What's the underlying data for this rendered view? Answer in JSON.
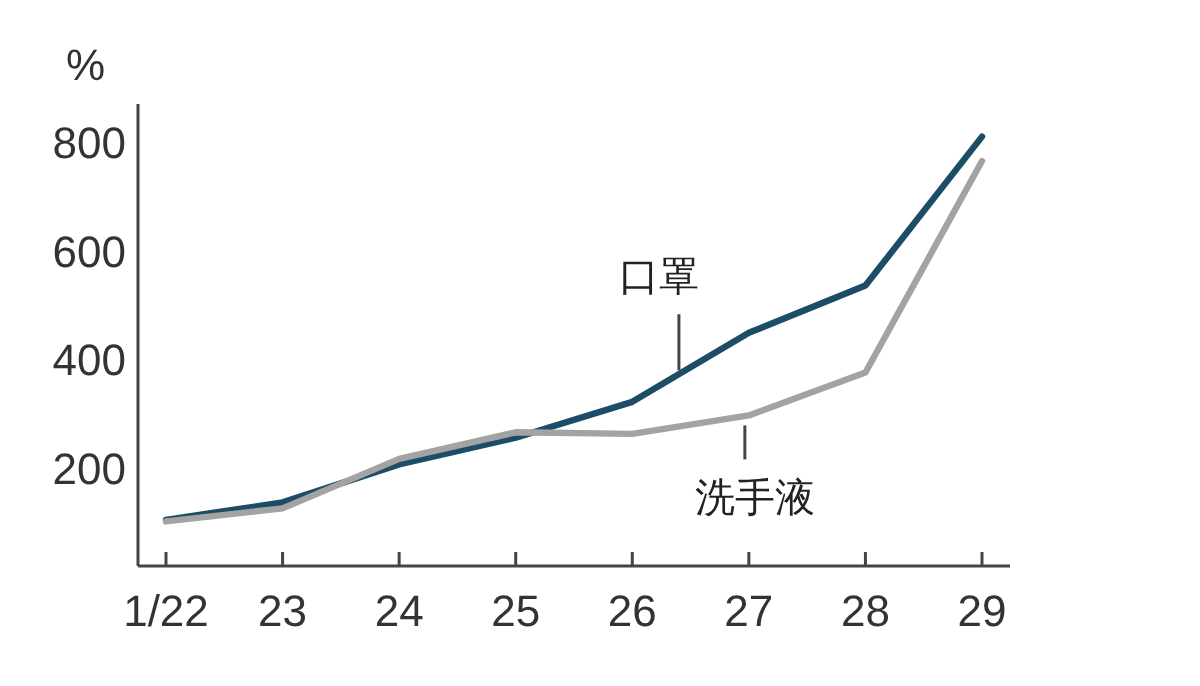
{
  "chart_data": {
    "type": "line",
    "ylabel": "%",
    "categories": [
      "1/22",
      "23",
      "24",
      "25",
      "26",
      "27",
      "28",
      "29"
    ],
    "ylim": [
      20,
      870
    ],
    "yticks": [
      200,
      400,
      600,
      800
    ],
    "grid": false,
    "marker": "none",
    "line_style": "solid",
    "series": [
      {
        "name": "口罩",
        "color": "#1d4d66",
        "values": [
          105,
          137,
          207,
          256,
          322,
          449,
          536,
          810
        ]
      },
      {
        "name": "洗手液",
        "color": "#a3a3a3",
        "values": [
          102,
          126,
          217,
          266,
          263,
          297,
          376,
          765
        ]
      }
    ]
  }
}
